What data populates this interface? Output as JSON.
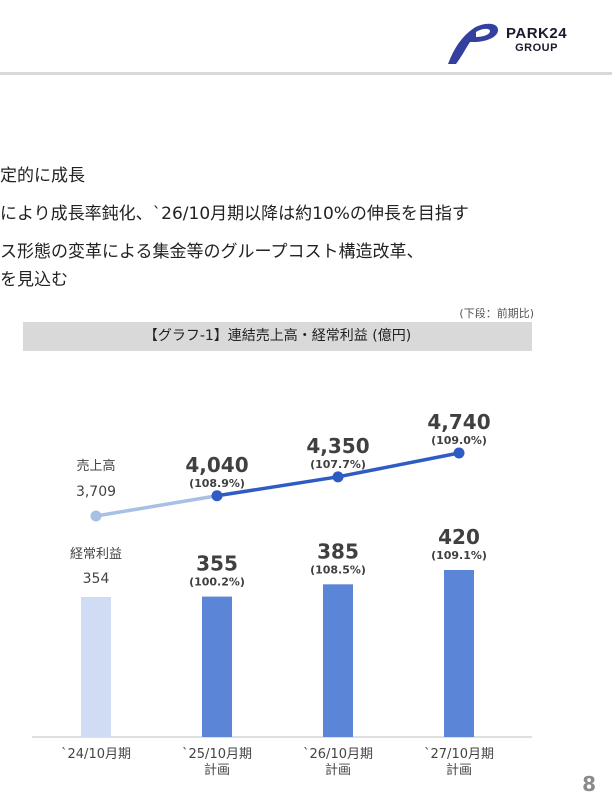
{
  "logo": {
    "name": "PARK24",
    "sub": "GROUP",
    "mark_color": "#3340a0",
    "icon": "park24-logo-icon"
  },
  "bullets": [
    "定的に成長",
    "により成長率鈍化、`26/10月期以降は約10%の伸長を目指す",
    "ス形態の変革による集金等のグループコスト構造改革、",
    "を見込む"
  ],
  "note": "(下段：前期比)",
  "page_number": "8",
  "chart_data": {
    "type": "bar",
    "title": "【グラフ-1】連結売上高・経常利益 (億円)",
    "categories": [
      [
        "`24/10月期"
      ],
      [
        "`25/10月期",
        "計画"
      ],
      [
        "`26/10月期",
        "計画"
      ],
      [
        "`27/10月期",
        "計画"
      ]
    ],
    "series": [
      {
        "name": "売上高",
        "type": "line",
        "values": [
          3709,
          4040,
          4350,
          4740
        ],
        "labels": [
          "3,709",
          "4,040",
          "4,350",
          "4,740"
        ],
        "growth": [
          "",
          "(108.9%)",
          "(107.7%)",
          "(109.0%)"
        ]
      },
      {
        "name": "経常利益",
        "type": "bar",
        "values": [
          354,
          355,
          385,
          420
        ],
        "labels": [
          "354",
          "355",
          "385",
          "420"
        ],
        "growth": [
          "",
          "(100.2%)",
          "(108.5%)",
          "(109.1%)"
        ]
      }
    ],
    "colors": {
      "line": "#2f5bc4",
      "line_actual": "#a8bfe6",
      "bar": "#5b86d8",
      "bar_actual": "#cfdcf3"
    },
    "grid": false,
    "legend": "inline"
  }
}
